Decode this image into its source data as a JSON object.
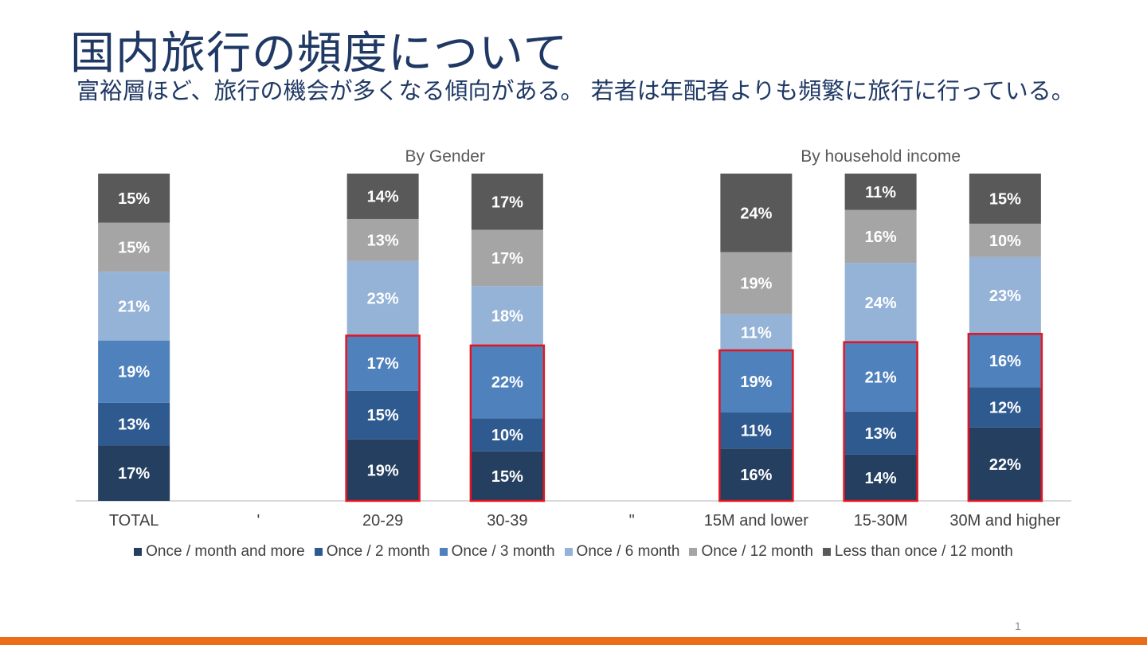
{
  "slide": {
    "title": "国内旅行の頻度について",
    "subtitle": "富裕層ほど、旅行の機会が多くなる傾向がある。 若者は年配者よりも頻繁に旅行に行っている。",
    "page_number": "1"
  },
  "colors": {
    "title": "#1f3864",
    "bottom_bar": "#ed6c1a",
    "highlight_box": "#e4141e",
    "series": [
      "#243f60",
      "#2f5a8f",
      "#4f81bd",
      "#95b3d7",
      "#a5a5a5",
      "#595959"
    ]
  },
  "chart_data": {
    "type": "bar",
    "stacked": true,
    "percent_stacked": true,
    "group_labels": [
      {
        "text": "By Gender",
        "over_categories": [
          "20-29",
          "30-39"
        ]
      },
      {
        "text": "By household income",
        "over_categories": [
          "15M and lower",
          "15-30M",
          "30M and higher"
        ]
      }
    ],
    "categories": [
      "TOTAL",
      "'",
      "20-29",
      "30-39",
      "\"",
      "15M and lower",
      "15-30M",
      "30M and higher"
    ],
    "series": [
      {
        "name": "Once / month and more",
        "values": [
          17,
          null,
          19,
          15,
          null,
          16,
          14,
          22
        ]
      },
      {
        "name": "Once / 2 month",
        "values": [
          13,
          null,
          15,
          10,
          null,
          11,
          13,
          12
        ]
      },
      {
        "name": "Once / 3 month",
        "values": [
          19,
          null,
          17,
          22,
          null,
          19,
          21,
          16
        ]
      },
      {
        "name": "Once / 6 month",
        "values": [
          21,
          null,
          23,
          18,
          null,
          11,
          24,
          23
        ]
      },
      {
        "name": "Once / 12 month",
        "values": [
          15,
          null,
          13,
          17,
          null,
          19,
          16,
          10
        ]
      },
      {
        "name": "Less than once / 12 month",
        "values": [
          15,
          null,
          14,
          17,
          null,
          24,
          11,
          15
        ]
      }
    ],
    "data_label_suffix": "%",
    "highlight": {
      "categories": [
        "20-29",
        "30-39",
        "15M and lower",
        "15-30M",
        "30M and higher"
      ],
      "series": [
        "Once / month and more",
        "Once / 2 month",
        "Once / 3 month"
      ]
    },
    "legend_position": "bottom",
    "grid": false,
    "ylim": [
      0,
      100
    ]
  }
}
